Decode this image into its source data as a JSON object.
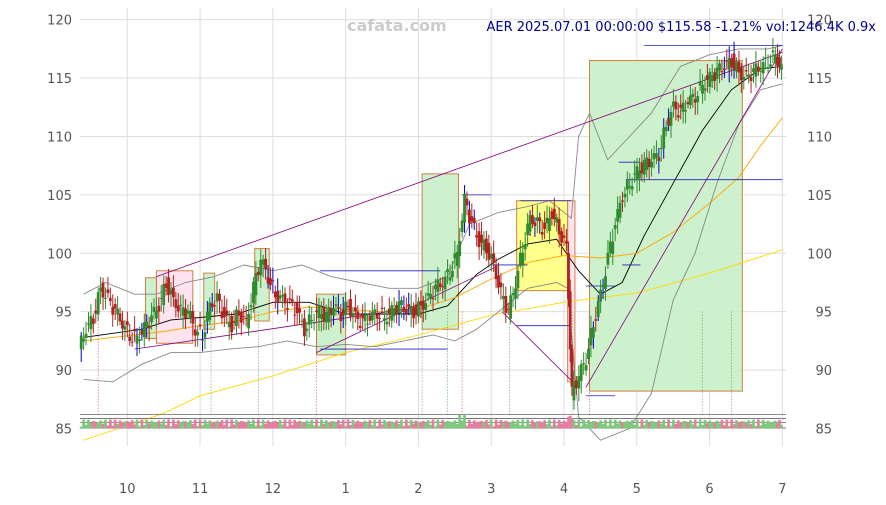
{
  "watermark": "cafata.com",
  "title": "AER 2025.07.01 00:00:00 $115.58 -1.21% vol:1246.4K 0.9x",
  "chart_data": {
    "type": "candlestick",
    "ylim": [
      83.5,
      121
    ],
    "yticks": [
      85,
      90,
      95,
      100,
      105,
      110,
      115,
      120
    ],
    "xticks": [
      {
        "label": "10",
        "x": 0
      },
      {
        "label": "11",
        "x": 1
      },
      {
        "label": "12",
        "x": 2
      },
      {
        "label": "1",
        "x": 3
      },
      {
        "label": "2",
        "x": 4
      },
      {
        "label": "3",
        "x": 5
      },
      {
        "label": "4",
        "x": 6
      },
      {
        "label": "5",
        "x": 7
      },
      {
        "label": "6",
        "x": 8
      },
      {
        "label": "7",
        "x": 9
      }
    ],
    "xlim": [
      -0.65,
      9.05
    ],
    "close_series": [
      [
        -0.65,
        91.8
      ],
      [
        -0.55,
        93.5
      ],
      [
        -0.45,
        94.5
      ],
      [
        -0.35,
        97.0
      ],
      [
        -0.25,
        96.0
      ],
      [
        -0.15,
        95.0
      ],
      [
        -0.05,
        94.0
      ],
      [
        0.05,
        93.0
      ],
      [
        0.15,
        92.8
      ],
      [
        0.25,
        93.5
      ],
      [
        0.35,
        94.5
      ],
      [
        0.45,
        95.5
      ],
      [
        0.55,
        97.5
      ],
      [
        0.65,
        96.0
      ],
      [
        0.75,
        95.0
      ],
      [
        0.85,
        95.0
      ],
      [
        0.95,
        93.5
      ],
      [
        1.05,
        93.0
      ],
      [
        1.15,
        95.5
      ],
      [
        1.25,
        96.0
      ],
      [
        1.35,
        94.5
      ],
      [
        1.45,
        93.8
      ],
      [
        1.55,
        95.0
      ],
      [
        1.65,
        94.0
      ],
      [
        1.75,
        97.0
      ],
      [
        1.85,
        99.5
      ],
      [
        1.95,
        98.0
      ],
      [
        2.05,
        96.5
      ],
      [
        2.15,
        96.0
      ],
      [
        2.25,
        95.5
      ],
      [
        2.35,
        95.0
      ],
      [
        2.45,
        93.5
      ],
      [
        2.55,
        94.5
      ],
      [
        2.65,
        95.0
      ],
      [
        2.75,
        94.5
      ],
      [
        2.85,
        95.5
      ],
      [
        2.95,
        94.8
      ],
      [
        3.05,
        95.5
      ],
      [
        3.15,
        94.5
      ],
      [
        3.25,
        94.0
      ],
      [
        3.35,
        94.5
      ],
      [
        3.45,
        95.0
      ],
      [
        3.55,
        94.5
      ],
      [
        3.65,
        95.0
      ],
      [
        3.75,
        95.5
      ],
      [
        3.85,
        95.2
      ],
      [
        3.95,
        95.0
      ],
      [
        4.05,
        95.5
      ],
      [
        4.15,
        96.0
      ],
      [
        4.25,
        97.0
      ],
      [
        4.35,
        97.5
      ],
      [
        4.45,
        98.5
      ],
      [
        4.55,
        100.0
      ],
      [
        4.65,
        104.5
      ],
      [
        4.75,
        102.5
      ],
      [
        4.85,
        101.0
      ],
      [
        4.95,
        100.5
      ],
      [
        5.05,
        99.0
      ],
      [
        5.15,
        96.5
      ],
      [
        5.25,
        95.0
      ],
      [
        5.35,
        97.5
      ],
      [
        5.45,
        100.5
      ],
      [
        5.55,
        103.0
      ],
      [
        5.65,
        102.5
      ],
      [
        5.75,
        102.0
      ],
      [
        5.85,
        103.5
      ],
      [
        5.95,
        102.0
      ],
      [
        6.05,
        100.5
      ],
      [
        6.12,
        88.0
      ],
      [
        6.22,
        89.5
      ],
      [
        6.32,
        91.0
      ],
      [
        6.42,
        94.0
      ],
      [
        6.52,
        96.5
      ],
      [
        6.62,
        99.5
      ],
      [
        6.72,
        102.5
      ],
      [
        6.82,
        105.0
      ],
      [
        6.92,
        106.0
      ],
      [
        7.02,
        107.0
      ],
      [
        7.12,
        107.5
      ],
      [
        7.22,
        108.0
      ],
      [
        7.32,
        108.5
      ],
      [
        7.42,
        111.0
      ],
      [
        7.52,
        112.5
      ],
      [
        7.62,
        112.0
      ],
      [
        7.72,
        113.0
      ],
      [
        7.82,
        113.5
      ],
      [
        7.92,
        114.5
      ],
      [
        8.02,
        115.0
      ],
      [
        8.12,
        115.5
      ],
      [
        8.22,
        116.0
      ],
      [
        8.32,
        116.5
      ],
      [
        8.42,
        115.5
      ],
      [
        8.52,
        115.0
      ],
      [
        8.62,
        115.5
      ],
      [
        8.72,
        116.0
      ],
      [
        8.82,
        116.5
      ],
      [
        8.92,
        117.0
      ],
      [
        9.0,
        115.58
      ]
    ],
    "overlays": [
      {
        "name": "sma20",
        "color": "#000000",
        "points": [
          [
            -0.6,
            92.8
          ],
          [
            0.2,
            93.5
          ],
          [
            0.6,
            94.3
          ],
          [
            1.0,
            94.5
          ],
          [
            1.5,
            94.8
          ],
          [
            2.0,
            95.8
          ],
          [
            2.5,
            95.8
          ],
          [
            3.0,
            94.8
          ],
          [
            3.5,
            94.8
          ],
          [
            4.0,
            94.8
          ],
          [
            4.4,
            95.5
          ],
          [
            4.8,
            98.2
          ],
          [
            5.1,
            99.5
          ],
          [
            5.5,
            100.8
          ],
          [
            5.9,
            101.2
          ],
          [
            6.2,
            98.5
          ],
          [
            6.5,
            96.5
          ],
          [
            6.8,
            97.5
          ],
          [
            7.1,
            101.5
          ],
          [
            7.5,
            106.0
          ],
          [
            7.9,
            110.5
          ],
          [
            8.3,
            114.0
          ],
          [
            8.7,
            115.8
          ],
          [
            9.0,
            116.0
          ]
        ]
      },
      {
        "name": "sma50",
        "color": "#ffa500",
        "points": [
          [
            -0.6,
            92.5
          ],
          [
            0.5,
            93.3
          ],
          [
            1.0,
            93.8
          ],
          [
            1.5,
            94.2
          ],
          [
            2.0,
            95.0
          ],
          [
            2.5,
            95.4
          ],
          [
            3.0,
            95.2
          ],
          [
            3.5,
            95.0
          ],
          [
            4.0,
            95.2
          ],
          [
            4.5,
            96.2
          ],
          [
            5.0,
            97.8
          ],
          [
            5.5,
            99.2
          ],
          [
            6.0,
            99.8
          ],
          [
            6.5,
            99.6
          ],
          [
            7.0,
            100.0
          ],
          [
            7.5,
            101.8
          ],
          [
            8.0,
            104.3
          ],
          [
            8.4,
            106.5
          ],
          [
            8.7,
            109.2
          ],
          [
            9.0,
            111.6
          ]
        ]
      },
      {
        "name": "sma200",
        "color": "#ffd700",
        "points": [
          [
            -0.6,
            84.0
          ],
          [
            0.5,
            86.3
          ],
          [
            1.0,
            87.8
          ],
          [
            2.0,
            89.5
          ],
          [
            3.0,
            91.5
          ],
          [
            4.0,
            93.0
          ],
          [
            5.0,
            94.7
          ],
          [
            6.0,
            95.8
          ],
          [
            7.0,
            96.6
          ],
          [
            8.0,
            98.3
          ],
          [
            9.0,
            100.3
          ]
        ]
      },
      {
        "name": "bb_upper",
        "color": "#888888",
        "points": [
          [
            -0.6,
            96.5
          ],
          [
            -0.3,
            97.5
          ],
          [
            0.1,
            96.5
          ],
          [
            0.4,
            96.5
          ],
          [
            0.8,
            97.5
          ],
          [
            1.2,
            98.0
          ],
          [
            1.6,
            99.0
          ],
          [
            2.0,
            98.5
          ],
          [
            2.4,
            99.0
          ],
          [
            2.8,
            98.0
          ],
          [
            3.2,
            97.5
          ],
          [
            3.6,
            97.0
          ],
          [
            4.0,
            97.0
          ],
          [
            4.4,
            98.0
          ],
          [
            4.7,
            102.5
          ],
          [
            5.1,
            103.5
          ],
          [
            5.5,
            104.0
          ],
          [
            5.8,
            104.5
          ],
          [
            6.1,
            103.0
          ],
          [
            6.2,
            110.0
          ],
          [
            6.35,
            112.0
          ],
          [
            6.6,
            108.0
          ],
          [
            6.9,
            110.0
          ],
          [
            7.2,
            112.0
          ],
          [
            7.6,
            116.0
          ],
          [
            8.0,
            117.0
          ],
          [
            8.4,
            117.5
          ],
          [
            8.8,
            117.5
          ],
          [
            9.0,
            117.8
          ]
        ]
      },
      {
        "name": "bb_lower",
        "color": "#888888",
        "points": [
          [
            -0.6,
            89.2
          ],
          [
            -0.2,
            89.0
          ],
          [
            0.2,
            90.5
          ],
          [
            0.6,
            91.5
          ],
          [
            1.0,
            91.5
          ],
          [
            1.4,
            91.8
          ],
          [
            1.8,
            92.0
          ],
          [
            2.2,
            92.5
          ],
          [
            2.6,
            92.0
          ],
          [
            3.0,
            92.2
          ],
          [
            3.4,
            92.0
          ],
          [
            3.8,
            92.5
          ],
          [
            4.2,
            93.0
          ],
          [
            4.5,
            92.5
          ],
          [
            4.8,
            93.5
          ],
          [
            5.1,
            95.0
          ],
          [
            5.5,
            97.0
          ],
          [
            5.9,
            97.5
          ],
          [
            6.05,
            97.0
          ],
          [
            6.2,
            86.0
          ],
          [
            6.5,
            84.0
          ],
          [
            6.9,
            85.0
          ],
          [
            7.2,
            88.0
          ],
          [
            7.5,
            96.0
          ],
          [
            7.8,
            100.0
          ],
          [
            8.1,
            106.0
          ],
          [
            8.4,
            111.0
          ],
          [
            8.7,
            114.0
          ],
          [
            9.0,
            114.5
          ]
        ]
      },
      {
        "name": "trend_upper",
        "color": "#800080",
        "points": [
          [
            0.4,
            98.0
          ],
          [
            9.0,
            117.2
          ]
        ]
      },
      {
        "name": "trend_lower",
        "color": "#800080",
        "points": [
          [
            0.1,
            91.8
          ],
          [
            3.8,
            95.2
          ]
        ]
      },
      {
        "name": "trend_a",
        "color": "#800080",
        "points": [
          [
            2.6,
            91.5
          ],
          [
            5.05,
            98.8
          ]
        ]
      },
      {
        "name": "trend_b",
        "color": "#800080",
        "points": [
          [
            5.15,
            95.0
          ],
          [
            6.15,
            88.8
          ]
        ]
      },
      {
        "name": "trend_c",
        "color": "#800080",
        "points": [
          [
            6.3,
            88.5
          ],
          [
            9.0,
            117.5
          ]
        ]
      }
    ],
    "hlines": [
      {
        "y": 98.5,
        "x": [
          2.65,
          4.3
        ]
      },
      {
        "y": 91.8,
        "x": [
          2.65,
          4.4
        ]
      },
      {
        "y": 105.0,
        "x": [
          4.6,
          5.0
        ]
      },
      {
        "y": 99.0,
        "x": [
          5.0,
          5.5
        ]
      },
      {
        "y": 104.5,
        "x": [
          5.4,
          6.1
        ]
      },
      {
        "y": 93.8,
        "x": [
          5.35,
          6.1
        ]
      },
      {
        "y": 97.2,
        "x": [
          6.3,
          6.7
        ]
      },
      {
        "y": 87.8,
        "x": [
          6.3,
          6.7
        ]
      },
      {
        "y": 107.8,
        "x": [
          6.75,
          7.05
        ]
      },
      {
        "y": 99.0,
        "x": [
          6.8,
          7.05
        ]
      },
      {
        "y": 106.3,
        "x": [
          6.85,
          9.0
        ]
      },
      {
        "y": 117.8,
        "x": [
          7.1,
          9.0
        ]
      }
    ],
    "zones": [
      {
        "x": [
          0.4,
          0.9
        ],
        "y": [
          92.3,
          98.5
        ],
        "fill": "#ffe0f0"
      },
      {
        "x": [
          0.25,
          0.4
        ],
        "y": [
          92.7,
          97.9
        ],
        "fill": "#c8f0c8"
      },
      {
        "x": [
          1.05,
          1.2
        ],
        "y": [
          93.5,
          98.3
        ],
        "fill": "#c8f0c8"
      },
      {
        "x": [
          1.75,
          1.95
        ],
        "y": [
          94.2,
          100.4
        ],
        "fill": "#c8f0c8"
      },
      {
        "x": [
          2.6,
          3.0
        ],
        "y": [
          91.3,
          96.5
        ],
        "fill": "#c8f0c8"
      },
      {
        "x": [
          4.05,
          4.55
        ],
        "y": [
          93.5,
          106.8
        ],
        "fill": "#c8f0c8"
      },
      {
        "x": [
          5.35,
          6.05
        ],
        "y": [
          96.8,
          104.5
        ],
        "fill": "#ffff80"
      },
      {
        "x": [
          6.05,
          6.15
        ],
        "y": [
          89.0,
          104.5
        ],
        "fill": "#ffe0f0"
      },
      {
        "x": [
          6.35,
          8.45
        ],
        "y": [
          88.2,
          116.5
        ],
        "fill": "#c8f0c8"
      }
    ],
    "markers": [
      -0.4,
      1.15,
      1.8,
      2.6,
      4.05,
      4.4,
      4.6,
      5.25,
      6.12,
      6.35,
      7.9,
      8.3
    ],
    "volume_band": [
      85.0,
      86.2
    ]
  }
}
